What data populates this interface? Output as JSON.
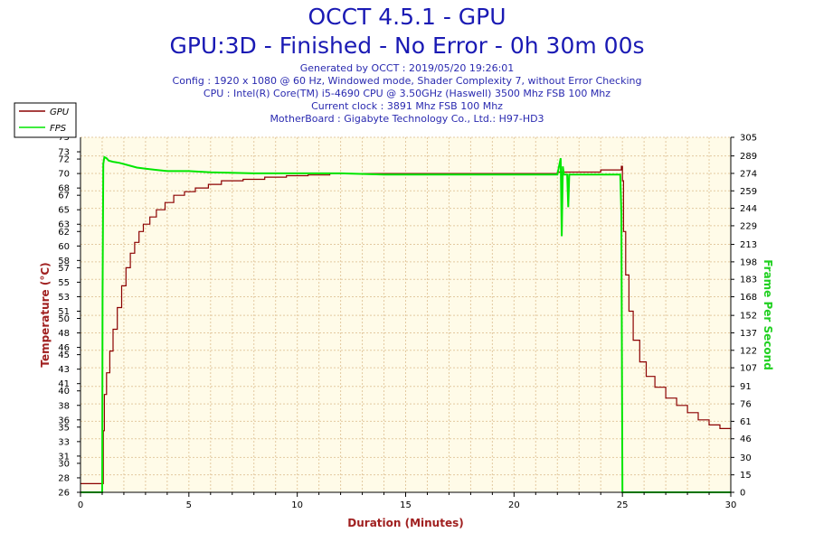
{
  "header": {
    "title": "OCCT 4.5.1 - GPU",
    "subtitle": "GPU:3D - Finished - No Error - 0h 30m 00s",
    "info_lines": [
      "Generated by OCCT : 2019/05/20 19:26:01",
      "Config : 1920 x 1080 @ 60 Hz, Windowed mode, Shader Complexity 7, without Error Checking",
      "CPU : Intel(R) Core(TM) i5-4690 CPU @ 3.50GHz (Haswell) 3500 Mhz FSB 100 Mhz",
      "Current clock : 3891 Mhz FSB 100 Mhz",
      "MotherBoard : Gigabyte Technology Co., Ltd.: H97-HD3"
    ]
  },
  "chart_data": {
    "type": "line",
    "title": "OCCT 4.5.1 - GPU",
    "xlabel": "Duration (Minutes)",
    "ylabel": "Temperature (°C)",
    "y2label": "Frame Per Second",
    "xlim": [
      0,
      30
    ],
    "ylim": [
      26,
      75
    ],
    "y2lim": [
      0,
      305
    ],
    "x_ticks": [
      0,
      5,
      10,
      15,
      20,
      25,
      30
    ],
    "y_ticks": [
      26,
      28,
      30,
      31,
      33,
      35,
      36,
      38,
      40,
      41,
      43,
      45,
      46,
      48,
      50,
      51,
      53,
      55,
      57,
      58,
      60,
      62,
      63,
      65,
      67,
      68,
      70,
      72,
      73
    ],
    "y_tick_labels": [
      "26",
      "28",
      "30",
      "31",
      "33",
      "35",
      "36",
      "38",
      "40",
      "41",
      "43",
      "45",
      "46",
      "48",
      "50",
      "51",
      "53",
      "55",
      "57",
      "58",
      "60",
      "62",
      "63",
      "65",
      "67",
      "68",
      "70",
      "72",
      "73"
    ],
    "y_top_label": "75",
    "y2_ticks": [
      0,
      15,
      30,
      46,
      61,
      76,
      91,
      107,
      122,
      137,
      152,
      168,
      183,
      198,
      213,
      229,
      244,
      259,
      274,
      289,
      305
    ],
    "grid": true,
    "legend_position": "top-left",
    "colors": {
      "gpu": "#8b0000",
      "fps": "#00e600",
      "temp_axis": "#a02020",
      "fps_axis": "#20d020",
      "plot_bg": "#fffbe8",
      "grid": "#e3c9a0",
      "title": "#1a1ab4"
    },
    "series": [
      {
        "name": "GPU",
        "axis": "left",
        "x": [
          0,
          0.95,
          1.05,
          1.1,
          1.2,
          1.35,
          1.5,
          1.7,
          1.9,
          2.1,
          2.3,
          2.5,
          2.7,
          2.9,
          3.2,
          3.5,
          3.9,
          4.3,
          4.8,
          5.3,
          5.9,
          6.5,
          7.5,
          8.5,
          9.5,
          10.5,
          11.5,
          12.5,
          14,
          16,
          18,
          20,
          22,
          24,
          24.95,
          25.0,
          25.05,
          25.15,
          25.3,
          25.5,
          25.8,
          26.1,
          26.5,
          27,
          27.5,
          28,
          28.5,
          29,
          29.5,
          30
        ],
        "y": [
          27.2,
          27.2,
          34.5,
          39.5,
          42.5,
          45.5,
          48.5,
          51.5,
          54.5,
          57,
          59,
          60.5,
          62,
          63,
          64,
          65,
          66,
          67,
          67.5,
          68,
          68.5,
          69,
          69.2,
          69.5,
          69.7,
          69.8,
          70,
          70,
          70,
          70,
          70,
          70,
          70.2,
          70.5,
          71,
          69,
          62,
          56,
          51,
          47,
          44,
          42,
          40.5,
          39,
          38,
          37,
          36,
          35.3,
          34.8,
          34.7
        ]
      },
      {
        "name": "FPS",
        "axis": "right",
        "x": [
          0,
          1.0,
          1.02,
          1.05,
          1.1,
          1.2,
          1.3,
          1.5,
          1.8,
          2.2,
          2.6,
          3.0,
          3.5,
          4.0,
          5.0,
          6.0,
          8.0,
          10.0,
          12.0,
          14.0,
          16.0,
          18.0,
          20.0,
          22.0,
          22.15,
          22.2,
          22.25,
          22.3,
          22.45,
          22.5,
          22.55,
          22.7,
          24.0,
          24.9,
          24.95,
          25.0,
          30.0
        ],
        "y": [
          0,
          0,
          170,
          282,
          288,
          287,
          285,
          284,
          283,
          281,
          279,
          278,
          277,
          276,
          276,
          275,
          274,
          274,
          274,
          273,
          273,
          273,
          273,
          273,
          287,
          220,
          280,
          273,
          273,
          245,
          273,
          273,
          273,
          273,
          240,
          0,
          0
        ]
      }
    ]
  }
}
